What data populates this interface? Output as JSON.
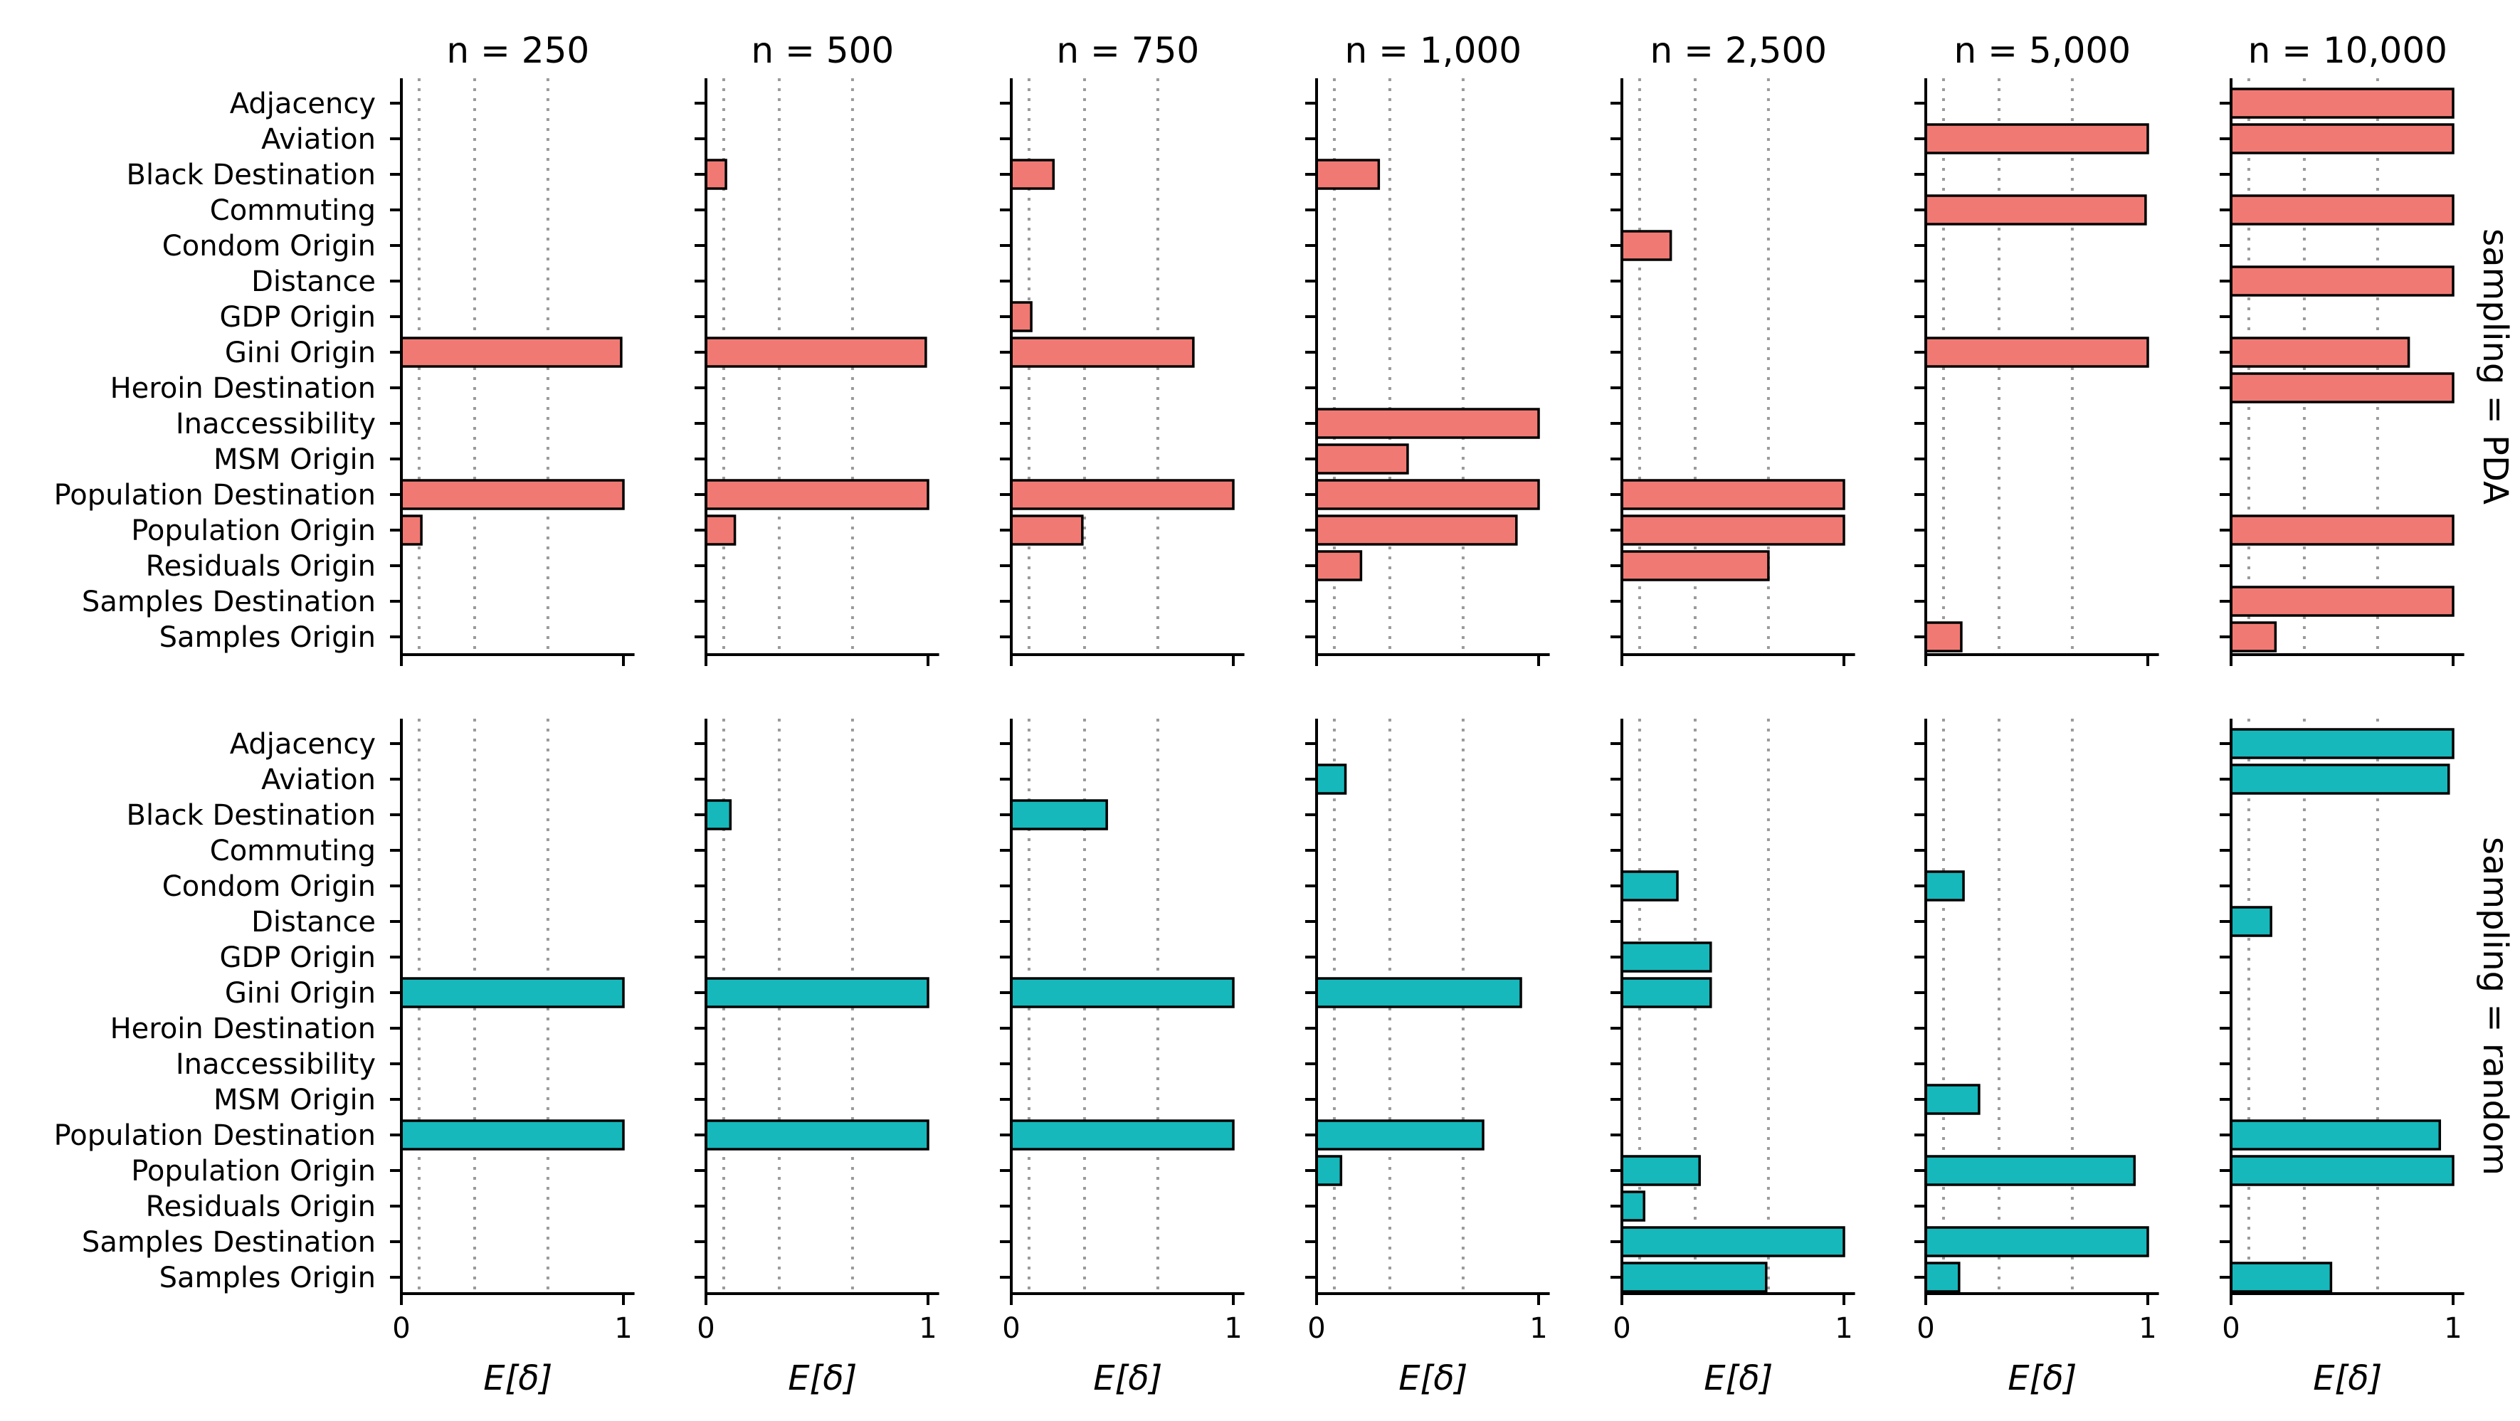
{
  "chart_data": {
    "type": "bar",
    "orientation": "horizontal",
    "layout": "facet-grid",
    "columns": [
      "n = 250",
      "n = 500",
      "n = 750",
      "n = 1,000",
      "n = 2,500",
      "n = 5,000",
      "n = 10,000"
    ],
    "rows": [
      {
        "label": "sampling = PDA",
        "color": "#F07A73"
      },
      {
        "label": "sampling = random",
        "color": "#16B8BB"
      }
    ],
    "categories": [
      "Adjacency",
      "Aviation",
      "Black Destination",
      "Commuting",
      "Condom Origin",
      "Distance",
      "GDP Origin",
      "Gini Origin",
      "Heroin Destination",
      "Inaccessibility",
      "MSM Origin",
      "Population Destination",
      "Population Origin",
      "Residuals Origin",
      "Samples Destination",
      "Samples Origin"
    ],
    "xlabel": "E[δ]",
    "xlim": [
      0,
      1.05
    ],
    "xticks": [
      "0",
      "1"
    ],
    "vlines": [
      0.08,
      0.33,
      0.66
    ],
    "panels": [
      [
        [
          0,
          0,
          0,
          0,
          0,
          0,
          0,
          0.99,
          0,
          0,
          0,
          1.0,
          0.09,
          0,
          0,
          0
        ],
        [
          0,
          0,
          0.09,
          0,
          0,
          0,
          0,
          0.99,
          0,
          0,
          0,
          1.0,
          0.13,
          0,
          0,
          0
        ],
        [
          0,
          0,
          0.19,
          0,
          0,
          0,
          0.09,
          0.82,
          0,
          0,
          0,
          1.0,
          0.32,
          0,
          0,
          0
        ],
        [
          0,
          0,
          0.28,
          0,
          0,
          0,
          0,
          0,
          0,
          1.0,
          0.41,
          1.0,
          0.9,
          0.2,
          0,
          0
        ],
        [
          0,
          0,
          0,
          0,
          0.22,
          0,
          0,
          0,
          0,
          0,
          0,
          1.0,
          1.0,
          0.66,
          0,
          0
        ],
        [
          0,
          1.0,
          0,
          0.99,
          0,
          0,
          0,
          1.0,
          0,
          0,
          0,
          0,
          0,
          0,
          0,
          0.16
        ],
        [
          1.0,
          1.0,
          0,
          1.0,
          0,
          1.0,
          0,
          0.8,
          1.0,
          0,
          0,
          0,
          1.0,
          0,
          1.0,
          0.2
        ]
      ],
      [
        [
          0,
          0,
          0,
          0,
          0,
          0,
          0,
          1.0,
          0,
          0,
          0,
          1.0,
          0,
          0,
          0,
          0
        ],
        [
          0,
          0,
          0.11,
          0,
          0,
          0,
          0,
          1.0,
          0,
          0,
          0,
          1.0,
          0,
          0,
          0,
          0
        ],
        [
          0,
          0,
          0.43,
          0,
          0,
          0,
          0,
          1.0,
          0,
          0,
          0,
          1.0,
          0,
          0,
          0,
          0
        ],
        [
          0,
          0.13,
          0,
          0,
          0,
          0,
          0,
          0.92,
          0,
          0,
          0,
          0.75,
          0.11,
          0,
          0,
          0
        ],
        [
          0,
          0,
          0,
          0,
          0.25,
          0,
          0.4,
          0.4,
          0,
          0,
          0,
          0,
          0.35,
          0.1,
          1.0,
          0.65
        ],
        [
          0,
          0,
          0,
          0,
          0.17,
          0,
          0,
          0,
          0,
          0,
          0.24,
          0,
          0.94,
          0,
          1.0,
          0.15
        ],
        [
          1.0,
          0.98,
          0,
          0,
          0,
          0.18,
          0,
          0,
          0,
          0,
          0,
          0.94,
          1.0,
          0,
          0,
          0.45
        ]
      ]
    ]
  }
}
